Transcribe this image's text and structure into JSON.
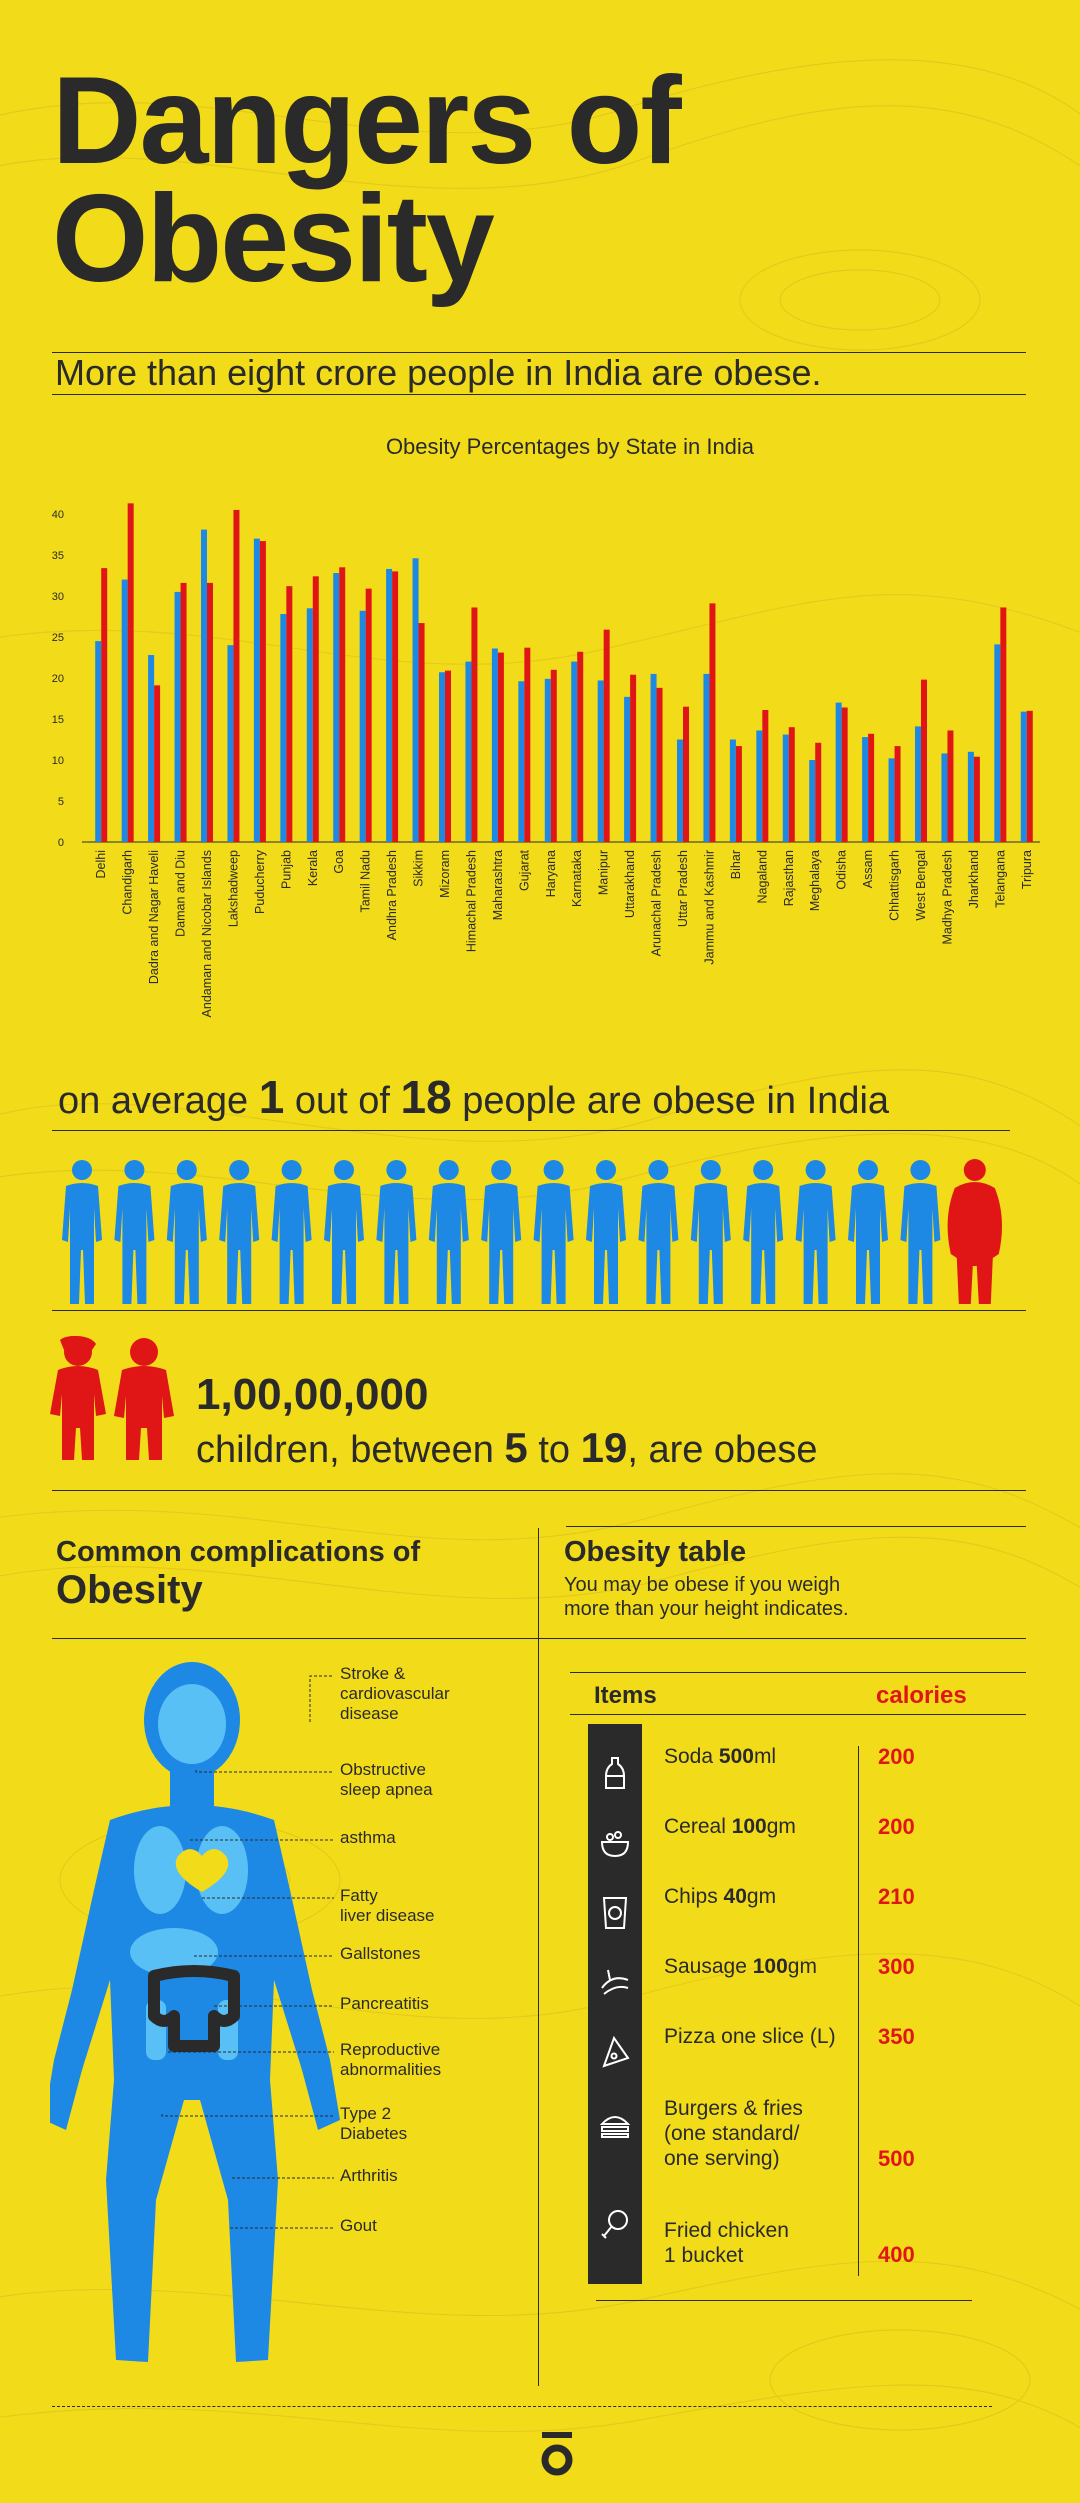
{
  "header": {
    "title_line1": "Dangers of",
    "title_line2": "Obesity",
    "subtitle": "More than eight crore people in India are obese."
  },
  "chart_data": {
    "type": "bar",
    "title": "Obesity Percentages by State in India",
    "xlabel": "",
    "ylabel": "",
    "ylim": [
      0,
      40
    ],
    "yticks": [
      0,
      5,
      10,
      15,
      20,
      25,
      30,
      35,
      40
    ],
    "grid": false,
    "legend": "none",
    "categories": [
      "Delhi",
      "Chandigarh",
      "Dadra and Nagar Haveli",
      "Daman and Diu",
      "Andaman and Nicobar Islands",
      "Lakshadweep",
      "Puducherry",
      "Punjab",
      "Kerala",
      "Goa",
      "Tamil Nadu",
      "Andhra Pradesh",
      "Sikkim",
      "Mizoram",
      "Himachal Pradesh",
      "Maharashtra",
      "Gujarat",
      "Haryana",
      "Karnataka",
      "Manipur",
      "Uttarakhand",
      "Arunachal Pradesh",
      "Uttar Pradesh",
      "Jammu and Kashmir",
      "Bihar",
      "Nagaland",
      "Rajasthan",
      "Meghalaya",
      "Odisha",
      "Assam",
      "Chhattisgarh",
      "West Bengal",
      "Madhya Pradesh",
      "Jharkhand",
      "Telangana",
      "Tripura"
    ],
    "series": [
      {
        "color": "#1e88e5",
        "values": [
          24.5,
          32,
          22.8,
          30.5,
          38.1,
          24,
          37,
          27.8,
          28.5,
          32.8,
          28.2,
          33.3,
          34.6,
          20.7,
          22,
          23.6,
          19.6,
          19.9,
          22,
          19.7,
          17.7,
          20.5,
          12.5,
          20.5,
          12.5,
          13.6,
          13.1,
          10,
          17,
          12.8,
          10.2,
          14.1,
          10.8,
          11,
          24.1,
          15.9
        ]
      },
      {
        "color": "#e01616",
        "values": [
          33.4,
          41.3,
          19.1,
          31.6,
          31.6,
          40.5,
          36.7,
          31.2,
          32.4,
          33.5,
          30.9,
          33,
          26.7,
          20.9,
          28.6,
          23.1,
          23.7,
          21,
          23.2,
          25.9,
          20.4,
          18.8,
          16.5,
          29.1,
          11.7,
          16.1,
          14,
          12.1,
          16.4,
          13.2,
          11.7,
          19.8,
          13.6,
          10.4,
          28.6,
          16
        ]
      }
    ]
  },
  "average": {
    "pre": "on average",
    "num1": "1",
    "mid": "out of",
    "num2": "18",
    "post": "people are obese in India",
    "count_total": 18,
    "count_highlight": 1
  },
  "children": {
    "count": "1,00,00,000",
    "pre": "children, between",
    "age1": "5",
    "mid": "to",
    "age2": "19",
    "post": ", are obese"
  },
  "complications": {
    "heading1": "Common complications of",
    "heading2": "Obesity",
    "items": [
      {
        "line1": "Stroke &",
        "line2": "cardiovascular",
        "line3": "disease"
      },
      {
        "line1": "Obstructive",
        "line2": "sleep apnea",
        "line3": ""
      },
      {
        "line1": "asthma",
        "line2": "",
        "line3": ""
      },
      {
        "line1": "Fatty",
        "line2": "liver disease",
        "line3": ""
      },
      {
        "line1": "Gallstones",
        "line2": "",
        "line3": ""
      },
      {
        "line1": "Pancreatitis",
        "line2": "",
        "line3": ""
      },
      {
        "line1": "Reproductive",
        "line2": "abnormalities",
        "line3": ""
      },
      {
        "line1": "Type 2",
        "line2": "Diabetes",
        "line3": ""
      },
      {
        "line1": "Arthritis",
        "line2": "",
        "line3": ""
      },
      {
        "line1": "Gout",
        "line2": "",
        "line3": ""
      }
    ]
  },
  "obesity_table": {
    "heading": "Obesity table",
    "desc1": "You may be obese if you weigh",
    "desc2": "more than your height indicates.",
    "col_items": "Items",
    "col_calories": "calories",
    "rows": [
      {
        "icon": "soda-bottle-icon",
        "pre": "Soda ",
        "bold": "500",
        "post": "ml",
        "l2": "",
        "l3": "",
        "cal": "200"
      },
      {
        "icon": "cereal-bowl-icon",
        "pre": "Cereal ",
        "bold": "100",
        "post": "gm",
        "l2": "",
        "l3": "",
        "cal": "200"
      },
      {
        "icon": "chips-bag-icon",
        "pre": "Chips ",
        "bold": "40",
        "post": "gm",
        "l2": "",
        "l3": "",
        "cal": "210"
      },
      {
        "icon": "sausage-icon",
        "pre": "Sausage ",
        "bold": "100",
        "post": "gm",
        "l2": "",
        "l3": "",
        "cal": "300"
      },
      {
        "icon": "pizza-slice-icon",
        "pre": "Pizza one slice (L)",
        "bold": "",
        "post": "",
        "l2": "",
        "l3": "",
        "cal": "350"
      },
      {
        "icon": "burger-icon",
        "pre": "Burgers & fries",
        "bold": "",
        "post": "",
        "l2": "(one standard/",
        "l3": "one serving)",
        "cal": "500"
      },
      {
        "icon": "chicken-leg-icon",
        "pre": "Fried chicken",
        "bold": "",
        "post": "",
        "l2": "1 bucket",
        "l3": "",
        "cal": "400"
      }
    ]
  },
  "colors": {
    "background": "#f2dc1a",
    "blue": "#1e88e5",
    "red": "#e01616",
    "dark": "#2a2a2a"
  }
}
